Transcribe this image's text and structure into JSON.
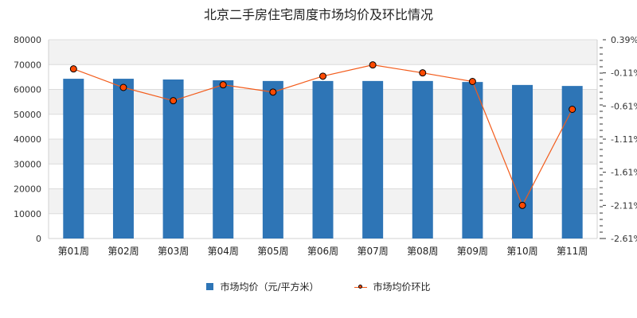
{
  "chart_data": {
    "type": "bar",
    "title": "北京二手房住宅周度市场均价及环比情况",
    "categories": [
      "第01周",
      "第02周",
      "第03周",
      "第04周",
      "第05周",
      "第06周",
      "第07周",
      "第08周",
      "第09周",
      "第10周",
      "第11周"
    ],
    "series": [
      {
        "name": "市场均价（元/平方米）",
        "type": "bar",
        "axis": "left",
        "color": "#2e75b6",
        "values": [
          64300,
          64300,
          64000,
          63700,
          63400,
          63400,
          63400,
          63400,
          63000,
          61800,
          61400
        ]
      },
      {
        "name": "市场均价环比",
        "type": "line",
        "axis": "right",
        "color": "#f35b1a",
        "marker_color": "#ff4a00",
        "values": [
          -0.05,
          -0.33,
          -0.53,
          -0.29,
          -0.4,
          -0.16,
          0.01,
          -0.11,
          -0.24,
          -2.11,
          -0.66
        ]
      }
    ],
    "xlabel": "",
    "ylabel": "",
    "ylim": [
      0,
      80000
    ],
    "y_ticks": [
      "0",
      "10000",
      "20000",
      "30000",
      "40000",
      "50000",
      "60000",
      "70000",
      "80000"
    ],
    "y2lim": [
      -2.61,
      0.39
    ],
    "y2_ticks": [
      "0.39%",
      "-0.11%",
      "-0.61%",
      "-1.11%",
      "-1.61%",
      "-2.11%",
      "-2.61%"
    ],
    "grid": true,
    "legend_position": "bottom"
  },
  "legend": {
    "bar_label": "市场均价（元/平方米）",
    "line_label": "市场均价环比"
  }
}
